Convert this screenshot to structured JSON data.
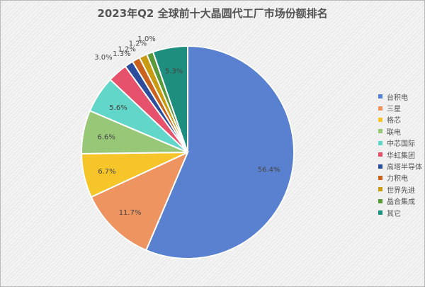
{
  "chart_data": {
    "type": "pie",
    "title": "2023年Q2 全球前十大晶圆代工厂市场份额排名",
    "legend_position": "right",
    "start": "top, clockwise",
    "slices": [
      {
        "label": "台积电",
        "value": 56.4,
        "color": "#5a80d0",
        "display": "56.4%"
      },
      {
        "label": "三星",
        "value": 11.7,
        "color": "#ee9460",
        "display": "11.7%"
      },
      {
        "label": "格芯",
        "value": 6.7,
        "color": "#f6c52a",
        "display": "6.7%"
      },
      {
        "label": "联电",
        "value": 6.6,
        "color": "#98c877",
        "display": "6.6%"
      },
      {
        "label": "中芯国际",
        "value": 5.6,
        "color": "#62d6c8",
        "display": "5.6%"
      },
      {
        "label": "华虹集团",
        "value": 3.0,
        "color": "#e6526c",
        "display": "3.0%"
      },
      {
        "label": "高塔半导体",
        "value": 1.3,
        "color": "#2c4c9c",
        "display": "1.3%"
      },
      {
        "label": "力积电",
        "value": 1.2,
        "color": "#c8621c",
        "display": "1.2%"
      },
      {
        "label": "世界先进",
        "value": 1.2,
        "color": "#c89c12",
        "display": "1.2%"
      },
      {
        "label": "晶合集成",
        "value": 1.0,
        "color": "#5a9a3a",
        "display": "1.0%"
      },
      {
        "label": "其它",
        "value": 5.3,
        "color": "#1e8e7e",
        "display": "5.3%"
      }
    ]
  }
}
